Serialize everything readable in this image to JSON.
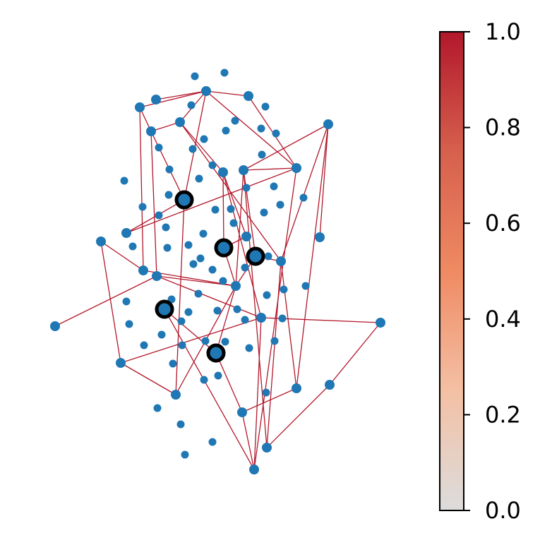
{
  "chart_data": {
    "type": "network",
    "node_color": "#1f77b4",
    "edge_color": "#b2182b",
    "highlight_color": "#000000",
    "colorbar": {
      "ylim": [
        0,
        1
      ],
      "yticks": [
        {
          "value": 0,
          "label": "0.0"
        },
        {
          "value": 0.2,
          "label": "0.2"
        },
        {
          "value": 0.4,
          "label": "0.4"
        },
        {
          "value": 0.6,
          "label": "0.6"
        },
        {
          "value": 0.8,
          "label": "0.8"
        },
        {
          "value": 1,
          "label": "1.0"
        }
      ],
      "colors": [
        "#dcdcdc",
        "#f4c0a4",
        "#ef8a62",
        "#d6604d",
        "#b2182b"
      ]
    }
  }
}
